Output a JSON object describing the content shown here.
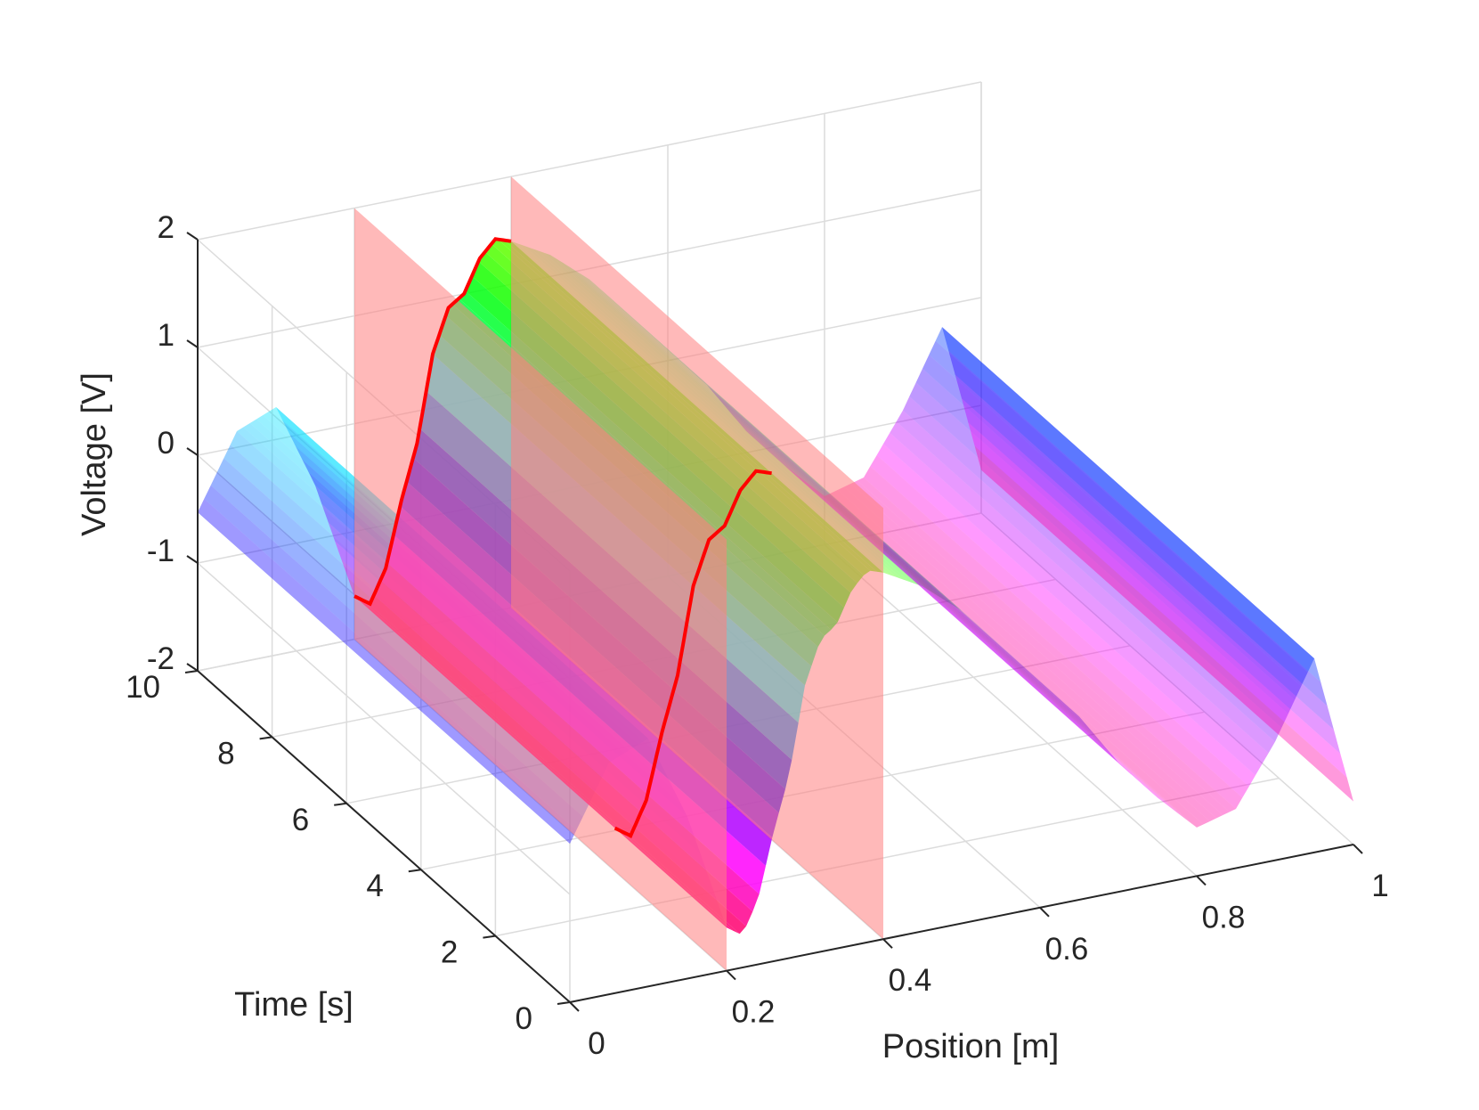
{
  "chart_data": {
    "type": "surface3d",
    "title": "",
    "xlabel": "Position [m]",
    "ylabel": "Time [s]",
    "zlabel": "Voltage [V]",
    "xlim": [
      0,
      1
    ],
    "ylim": [
      0,
      10
    ],
    "zlim": [
      -2,
      2
    ],
    "xticks": [
      0,
      0.2,
      0.4,
      0.6,
      0.8,
      1
    ],
    "xtick_labels": [
      "0",
      "0.2",
      "0.4",
      "0.6",
      "0.8",
      "1"
    ],
    "yticks": [
      0,
      2,
      4,
      6,
      8,
      10
    ],
    "ytick_labels": [
      "0",
      "2",
      "4",
      "6",
      "8",
      "10"
    ],
    "zticks": [
      -2,
      -1,
      0,
      1,
      2
    ],
    "ztick_labels": [
      "-2",
      "-1",
      "0",
      "1",
      "2"
    ],
    "grid": true,
    "colormap": "hsv",
    "surface_opacity": 0.4,
    "highlight_color": "#ff0000",
    "plane_color": "#ff8080",
    "time_slices": [
      10,
      3
    ],
    "highlight_x_range": [
      0.2,
      0.4
    ],
    "surface_profile": {
      "x": [
        0,
        0.05,
        0.1,
        0.15,
        0.2,
        0.22,
        0.24,
        0.26,
        0.28,
        0.3,
        0.32,
        0.34,
        0.36,
        0.38,
        0.4,
        0.45,
        0.5,
        0.55,
        0.6,
        0.65,
        0.7,
        0.75,
        0.8,
        0.85,
        0.9,
        0.95,
        1.0
      ],
      "voltage": [
        -0.53,
        0.15,
        0.3,
        -0.5,
        -1.6,
        -1.7,
        -1.4,
        -0.8,
        -0.3,
        0.5,
        0.9,
        1.0,
        1.3,
        1.45,
        1.4,
        1.2,
        0.9,
        0.5,
        0.1,
        -0.3,
        -0.8,
        -1.2,
        -1.55,
        -1.45,
        -0.9,
        -0.2,
        -1.6
      ]
    }
  }
}
